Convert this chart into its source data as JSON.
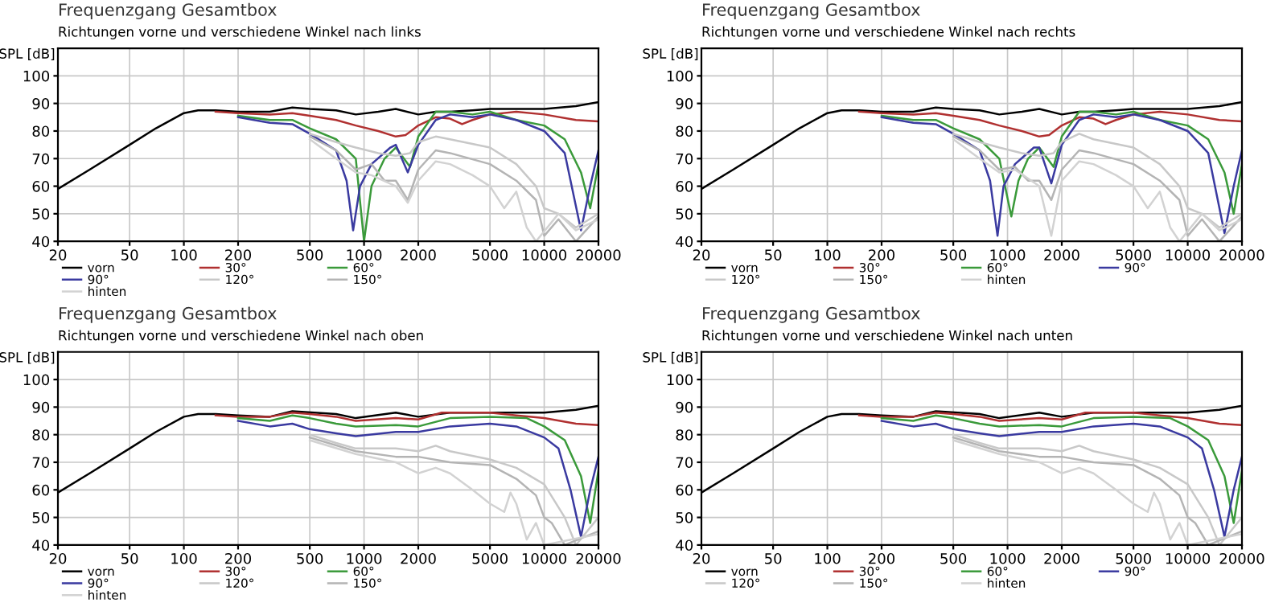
{
  "chart_data": [
    {
      "type": "line",
      "title": "Frequenzgang Gesamtbox",
      "subtitle": "Richtungen vorne und verschiedene Winkel nach links",
      "ylabel": "SPL [dB]",
      "log": "x",
      "xlim": [
        20,
        20000
      ],
      "ylim": [
        40,
        110
      ],
      "xticks": [
        20,
        50,
        100,
        200,
        500,
        1000,
        2000,
        5000,
        10000,
        20000
      ],
      "yticks": [
        40,
        50,
        60,
        70,
        80,
        90,
        100
      ],
      "grid": true,
      "legend": "bottom",
      "series": [
        {
          "name": "vorn",
          "color": "#000000",
          "x": [
            20,
            30,
            50,
            70,
            100,
            120,
            150,
            200,
            300,
            400,
            500,
            700,
            900,
            1200,
            1500,
            2000,
            2500,
            3000,
            4000,
            5000,
            7000,
            10000,
            15000,
            20000
          ],
          "values": [
            59,
            66,
            75,
            81,
            86.5,
            87.5,
            87.5,
            87,
            87,
            88.5,
            88,
            87.5,
            86,
            87,
            88,
            86,
            87,
            87,
            87.5,
            88,
            88,
            88,
            89,
            90.5
          ]
        },
        {
          "name": "30°",
          "color": "#b03030",
          "x": [
            150,
            200,
            300,
            400,
            500,
            700,
            900,
            1200,
            1500,
            1700,
            2000,
            2500,
            3000,
            3500,
            4000,
            5000,
            7000,
            10000,
            15000,
            20000
          ],
          "values": [
            87,
            86.5,
            86,
            86.5,
            85.5,
            84,
            82,
            80,
            78,
            78.5,
            82,
            85,
            84.5,
            82.5,
            84,
            86,
            87,
            86,
            84,
            83.5
          ]
        },
        {
          "name": "60°",
          "color": "#3a9a3a",
          "x": [
            200,
            300,
            400,
            500,
            700,
            900,
            1000,
            1100,
            1300,
            1500,
            1800,
            2000,
            2500,
            3000,
            4000,
            5000,
            7000,
            10000,
            13000,
            16000,
            18000,
            20000
          ],
          "values": [
            85.5,
            84,
            84,
            81,
            77,
            70,
            40,
            60,
            70,
            74,
            67,
            78,
            87,
            87,
            86,
            87,
            84,
            82,
            77,
            65,
            52,
            68
          ]
        },
        {
          "name": "90°",
          "color": "#3a3aa0",
          "x": [
            200,
            300,
            400,
            500,
            700,
            800,
            870,
            950,
            1100,
            1400,
            1500,
            1750,
            2000,
            2500,
            3000,
            4000,
            5000,
            7000,
            10000,
            13000,
            16000,
            18000,
            20000
          ],
          "values": [
            85,
            83,
            82.5,
            79,
            73,
            62,
            44,
            60,
            68,
            74,
            75,
            65,
            75,
            84,
            86,
            85,
            86,
            84,
            80,
            72,
            44,
            60,
            73
          ]
        },
        {
          "name": "120°",
          "color": "#c8c8c8",
          "x": [
            500,
            700,
            900,
            1200,
            1500,
            1800,
            2000,
            2500,
            3000,
            5000,
            7000,
            9000,
            10000,
            12000,
            15000,
            20000
          ],
          "values": [
            79,
            76,
            74,
            72,
            71,
            72,
            76,
            78,
            77,
            74,
            68,
            60,
            52,
            50,
            45,
            50
          ]
        },
        {
          "name": "150°",
          "color": "#b4b4b4",
          "x": [
            500,
            700,
            900,
            1100,
            1300,
            1500,
            1750,
            2000,
            2500,
            3000,
            5000,
            7000,
            9000,
            10000,
            12000,
            15000,
            20000
          ],
          "values": [
            78,
            73,
            66,
            68,
            62,
            62,
            55,
            66,
            73,
            72,
            68,
            62,
            55,
            42,
            48,
            40,
            49
          ]
        },
        {
          "name": "hinten",
          "color": "#d2d2d2",
          "x": [
            500,
            700,
            900,
            1100,
            1500,
            1750,
            2000,
            2500,
            3000,
            4000,
            5000,
            6000,
            7000,
            8000,
            9000,
            12000,
            15000,
            20000
          ],
          "values": [
            77,
            70,
            65,
            64,
            60,
            54,
            62,
            69,
            68,
            64,
            60,
            52,
            58,
            45,
            40,
            50,
            44,
            48
          ]
        }
      ]
    },
    {
      "type": "line",
      "title": "Frequenzgang Gesamtbox",
      "subtitle": "Richtungen vorne und verschiedene Winkel nach rechts",
      "ylabel": "SPL [dB]",
      "log": "x",
      "xlim": [
        20,
        20000
      ],
      "ylim": [
        40,
        110
      ],
      "xticks": [
        20,
        50,
        100,
        200,
        500,
        1000,
        2000,
        5000,
        10000,
        20000
      ],
      "yticks": [
        40,
        50,
        60,
        70,
        80,
        90,
        100
      ],
      "grid": true,
      "legend": "bottom",
      "series": [
        {
          "name": "vorn",
          "color": "#000000",
          "x": [
            20,
            30,
            50,
            70,
            100,
            120,
            150,
            200,
            300,
            400,
            500,
            700,
            900,
            1200,
            1500,
            2000,
            2500,
            3000,
            4000,
            5000,
            7000,
            10000,
            15000,
            20000
          ],
          "values": [
            59,
            66,
            75,
            81,
            86.5,
            87.5,
            87.5,
            87,
            87,
            88.5,
            88,
            87.5,
            86,
            87,
            88,
            86,
            87,
            87,
            87.5,
            88,
            88,
            88,
            89,
            90.5
          ]
        },
        {
          "name": "30°",
          "color": "#b03030",
          "x": [
            150,
            200,
            300,
            400,
            500,
            700,
            900,
            1200,
            1500,
            1700,
            2000,
            2500,
            3000,
            3500,
            4000,
            5000,
            7000,
            10000,
            15000,
            20000
          ],
          "values": [
            87,
            86.5,
            86,
            86.5,
            85.5,
            84,
            82,
            80,
            78,
            78.5,
            82,
            85,
            84.5,
            82.5,
            84,
            86,
            87,
            86,
            84,
            83.5
          ]
        },
        {
          "name": "60°",
          "color": "#3a9a3a",
          "x": [
            200,
            300,
            400,
            500,
            700,
            900,
            1050,
            1150,
            1300,
            1500,
            1800,
            2000,
            2500,
            3000,
            4000,
            5000,
            7000,
            10000,
            13000,
            16000,
            18000,
            20000
          ],
          "values": [
            85.5,
            84,
            84,
            81,
            77,
            70,
            49,
            62,
            70,
            74,
            67,
            78,
            87,
            87,
            86,
            87,
            84,
            82,
            77,
            65,
            50,
            68
          ]
        },
        {
          "name": "90°",
          "color": "#3a3aa0",
          "x": [
            200,
            300,
            400,
            500,
            700,
            800,
            880,
            950,
            1100,
            1400,
            1500,
            1750,
            2000,
            2500,
            3000,
            4000,
            5000,
            7000,
            10000,
            13000,
            16000,
            18000,
            20000
          ],
          "values": [
            85,
            83,
            82.5,
            79,
            73,
            62,
            42,
            60,
            68,
            74,
            74,
            61,
            75,
            84,
            86,
            85,
            86,
            84,
            80,
            72,
            43,
            60,
            73
          ]
        },
        {
          "name": "120°",
          "color": "#c8c8c8",
          "x": [
            500,
            700,
            900,
            1200,
            1500,
            1800,
            2000,
            2500,
            3000,
            5000,
            7000,
            9000,
            10000,
            12000,
            15000,
            20000
          ],
          "values": [
            79,
            76,
            74,
            72,
            71,
            72,
            76,
            79,
            77,
            74,
            68,
            60,
            52,
            50,
            45,
            50
          ]
        },
        {
          "name": "150°",
          "color": "#b4b4b4",
          "x": [
            500,
            700,
            900,
            1100,
            1300,
            1500,
            1750,
            2000,
            2500,
            3000,
            5000,
            7000,
            9000,
            10000,
            12000,
            15000,
            20000
          ],
          "values": [
            78,
            73,
            66,
            67,
            62,
            62,
            55,
            66,
            73,
            72,
            68,
            62,
            55,
            42,
            48,
            40,
            49
          ]
        },
        {
          "name": "hinten",
          "color": "#d2d2d2",
          "x": [
            500,
            700,
            900,
            1100,
            1500,
            1750,
            2000,
            2500,
            3000,
            4000,
            5000,
            6000,
            7000,
            8000,
            9000,
            12000,
            15000,
            20000
          ],
          "values": [
            77,
            70,
            65,
            66,
            60,
            42,
            62,
            69,
            68,
            64,
            60,
            52,
            58,
            45,
            40,
            50,
            44,
            48
          ]
        }
      ]
    },
    {
      "type": "line",
      "title": "Frequenzgang Gesamtbox",
      "subtitle": "Richtungen vorne und verschiedene Winkel nach oben",
      "ylabel": "SPL [dB]",
      "log": "x",
      "xlim": [
        20,
        20000
      ],
      "ylim": [
        40,
        110
      ],
      "xticks": [
        20,
        50,
        100,
        200,
        500,
        1000,
        2000,
        5000,
        10000,
        20000
      ],
      "yticks": [
        40,
        50,
        60,
        70,
        80,
        90,
        100
      ],
      "grid": true,
      "legend": "bottom",
      "series": [
        {
          "name": "vorn",
          "color": "#000000",
          "x": [
            20,
            30,
            50,
            70,
            100,
            120,
            150,
            200,
            300,
            400,
            700,
            900,
            1500,
            2000,
            3000,
            5000,
            10000,
            15000,
            20000
          ],
          "values": [
            59,
            66,
            75,
            81,
            86.5,
            87.5,
            87.5,
            87,
            86.5,
            88.5,
            87.5,
            86,
            88,
            86.5,
            88,
            88,
            88,
            89,
            90.5
          ]
        },
        {
          "name": "30°",
          "color": "#b03030",
          "x": [
            150,
            200,
            300,
            400,
            500,
            700,
            900,
            1500,
            2000,
            2700,
            5000,
            7000,
            10000,
            15000,
            20000
          ],
          "values": [
            87,
            86.5,
            86.5,
            88,
            87.5,
            86.5,
            85,
            86,
            85.5,
            88,
            88,
            87,
            86,
            84,
            83.5
          ]
        },
        {
          "name": "60°",
          "color": "#3a9a3a",
          "x": [
            200,
            300,
            400,
            500,
            700,
            900,
            1500,
            2000,
            3000,
            5000,
            8000,
            10000,
            13000,
            16000,
            18000,
            20000
          ],
          "values": [
            86,
            85,
            87,
            86,
            84,
            83,
            83.5,
            83,
            86,
            86.5,
            86,
            83,
            78,
            65,
            48,
            67
          ]
        },
        {
          "name": "90°",
          "color": "#3a3aa0",
          "x": [
            200,
            300,
            400,
            500,
            700,
            900,
            1500,
            2000,
            3000,
            5000,
            7000,
            10000,
            12000,
            14000,
            16000,
            18000,
            20000
          ],
          "values": [
            85,
            83,
            84,
            82,
            80.5,
            79.5,
            81,
            81,
            83,
            84,
            83,
            79,
            75,
            60,
            43,
            60,
            72
          ]
        },
        {
          "name": "120°",
          "color": "#c8c8c8",
          "x": [
            500,
            700,
            900,
            1500,
            2000,
            2500,
            3000,
            5000,
            7000,
            10000,
            13000,
            15000,
            20000
          ],
          "values": [
            80,
            77,
            75,
            75,
            74,
            76,
            74,
            71,
            68,
            62,
            50,
            40,
            50
          ]
        },
        {
          "name": "150°",
          "color": "#b4b4b4",
          "x": [
            500,
            900,
            1500,
            2000,
            3000,
            5000,
            7000,
            9000,
            10000,
            11000,
            13000,
            20000
          ],
          "values": [
            79,
            74,
            72,
            72,
            70,
            69,
            64,
            58,
            50,
            48,
            40,
            45
          ]
        },
        {
          "name": "hinten",
          "color": "#d2d2d2",
          "x": [
            500,
            900,
            1500,
            2000,
            2500,
            3000,
            4000,
            5000,
            6000,
            6500,
            7000,
            8000,
            9000,
            10000,
            20000
          ],
          "values": [
            78,
            73,
            70,
            66,
            68,
            66,
            60,
            55,
            52,
            59,
            55,
            42,
            48,
            40,
            44
          ]
        }
      ]
    },
    {
      "type": "line",
      "title": "Frequenzgang Gesamtbox",
      "subtitle": "Richtungen vorne und verschiedene Winkel nach unten",
      "ylabel": "SPL [dB]",
      "log": "x",
      "xlim": [
        20,
        20000
      ],
      "ylim": [
        40,
        110
      ],
      "xticks": [
        20,
        50,
        100,
        200,
        500,
        1000,
        2000,
        5000,
        10000,
        20000
      ],
      "yticks": [
        40,
        50,
        60,
        70,
        80,
        90,
        100
      ],
      "grid": true,
      "legend": "bottom",
      "series": [
        {
          "name": "vorn",
          "color": "#000000",
          "x": [
            20,
            30,
            50,
            70,
            100,
            120,
            150,
            200,
            300,
            400,
            700,
            900,
            1500,
            2000,
            3000,
            5000,
            10000,
            15000,
            20000
          ],
          "values": [
            59,
            66,
            75,
            81,
            86.5,
            87.5,
            87.5,
            87,
            86.5,
            88.5,
            87.5,
            86,
            88,
            86.5,
            88,
            88,
            88,
            89,
            90.5
          ]
        },
        {
          "name": "30°",
          "color": "#b03030",
          "x": [
            150,
            200,
            300,
            400,
            500,
            700,
            900,
            1500,
            2000,
            2700,
            5000,
            7000,
            10000,
            15000,
            20000
          ],
          "values": [
            87,
            86.5,
            86.5,
            88,
            87.5,
            86.5,
            85,
            86,
            85.5,
            88,
            88,
            87,
            86,
            84,
            83.5
          ]
        },
        {
          "name": "60°",
          "color": "#3a9a3a",
          "x": [
            200,
            300,
            400,
            500,
            700,
            900,
            1500,
            2000,
            3000,
            5000,
            8000,
            10000,
            13000,
            16000,
            18000,
            20000
          ],
          "values": [
            86,
            85,
            87,
            86,
            84,
            83,
            83.5,
            83,
            86,
            86.5,
            86,
            83,
            78,
            65,
            48,
            67
          ]
        },
        {
          "name": "90°",
          "color": "#3a3aa0",
          "x": [
            200,
            300,
            400,
            500,
            700,
            900,
            1500,
            2000,
            3000,
            5000,
            7000,
            10000,
            12000,
            14000,
            16000,
            18000,
            20000
          ],
          "values": [
            85,
            83,
            84,
            82,
            80.5,
            79.5,
            81,
            81,
            83,
            84,
            83,
            79,
            75,
            60,
            43,
            60,
            72
          ]
        },
        {
          "name": "120°",
          "color": "#c8c8c8",
          "x": [
            500,
            700,
            900,
            1500,
            2000,
            2500,
            3000,
            5000,
            7000,
            10000,
            13000,
            15000,
            20000
          ],
          "values": [
            80,
            77,
            75,
            75,
            74,
            76,
            74,
            71,
            68,
            62,
            50,
            40,
            50
          ]
        },
        {
          "name": "150°",
          "color": "#b4b4b4",
          "x": [
            500,
            900,
            1500,
            2000,
            3000,
            5000,
            7000,
            9000,
            10000,
            11000,
            13000,
            20000
          ],
          "values": [
            79,
            74,
            72,
            72,
            70,
            69,
            64,
            58,
            50,
            48,
            40,
            45
          ]
        },
        {
          "name": "hinten",
          "color": "#d2d2d2",
          "x": [
            500,
            900,
            1500,
            2000,
            2500,
            3000,
            4000,
            5000,
            6000,
            6500,
            7000,
            8000,
            9000,
            10000,
            20000
          ],
          "values": [
            78,
            73,
            70,
            66,
            68,
            66,
            60,
            55,
            52,
            59,
            55,
            42,
            48,
            40,
            44
          ]
        }
      ]
    }
  ]
}
